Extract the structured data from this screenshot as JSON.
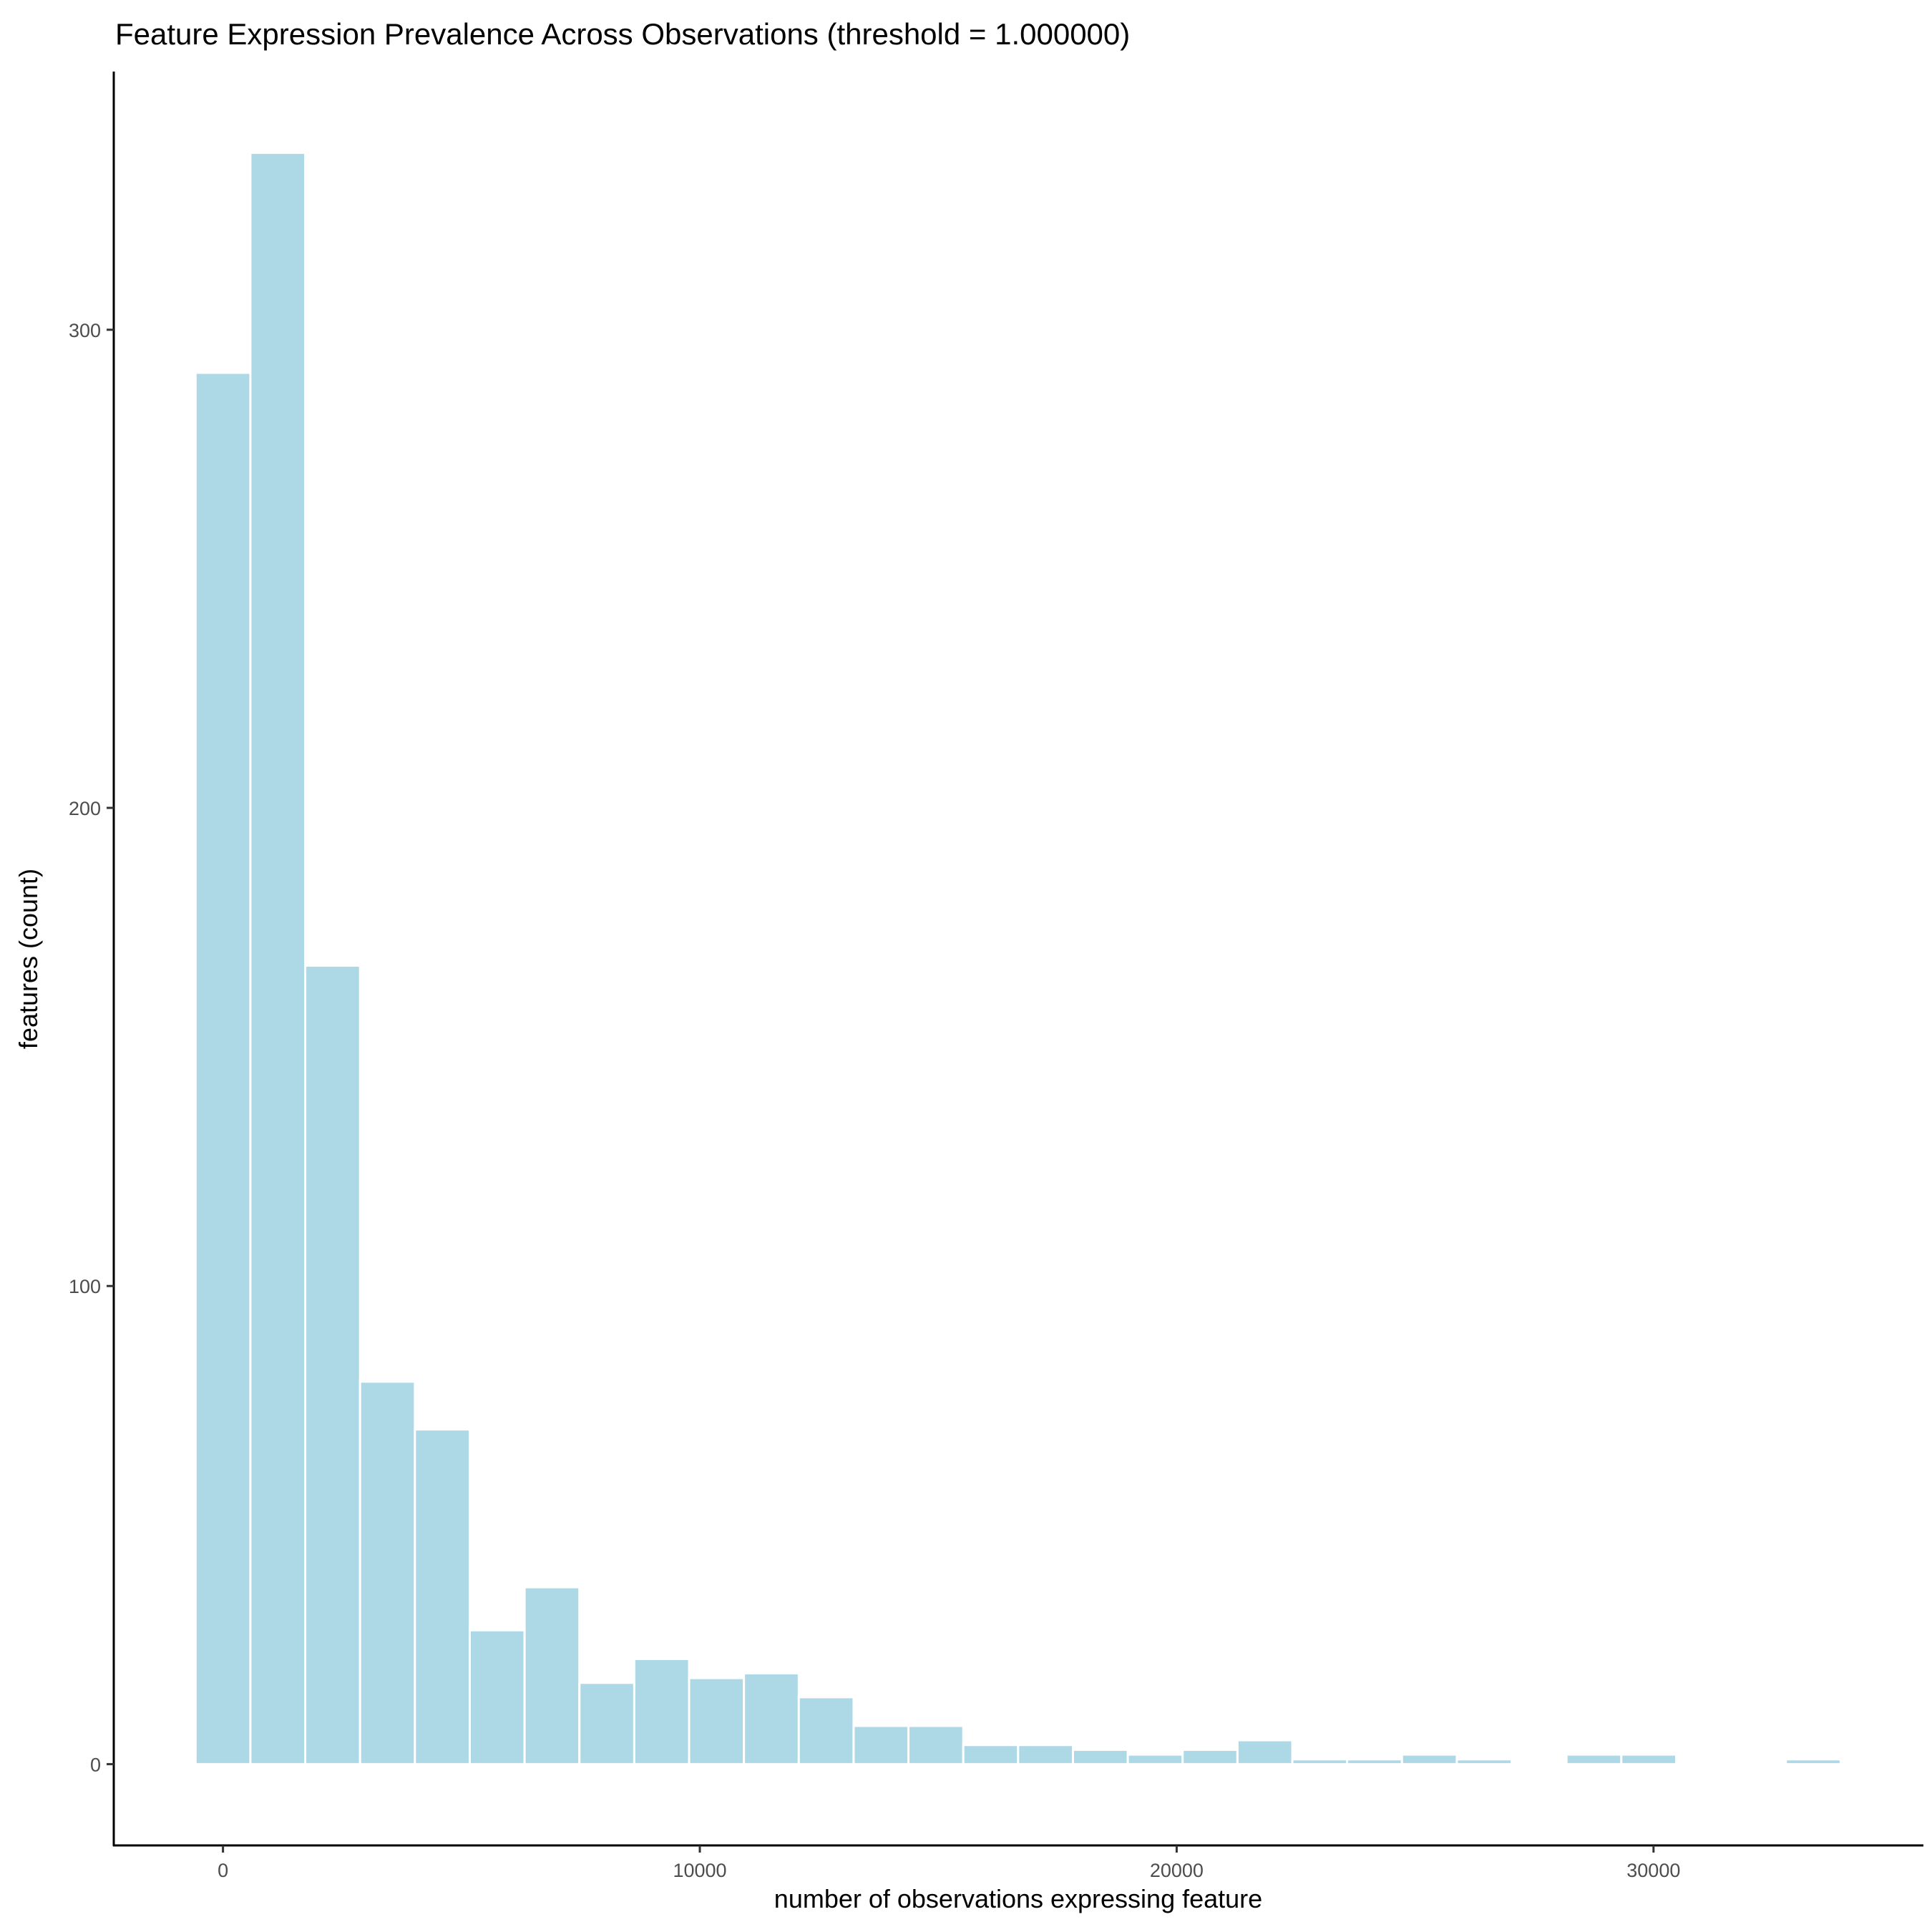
{
  "chart_data": {
    "type": "bar",
    "title": "Feature Expression Prevalence Across Observations (threshold = 1.000000)",
    "xlabel": "number of observations expressing feature",
    "ylabel": "features (count)",
    "bin_width": 1150,
    "bin_centers_start": 0,
    "values": [
      291,
      337,
      167,
      80,
      70,
      28,
      37,
      17,
      22,
      18,
      19,
      14,
      8,
      8,
      4,
      4,
      3,
      2,
      3,
      5,
      1,
      1,
      2,
      1,
      0,
      2,
      2,
      0,
      0,
      1
    ],
    "xlim": [
      -2290,
      35660
    ],
    "ylim": [
      -17,
      354
    ],
    "x_ticks": [
      0,
      10000,
      20000,
      30000
    ],
    "x_tick_labels": [
      "0",
      "10000",
      "20000",
      "30000"
    ],
    "y_ticks": [
      0,
      100,
      200,
      300
    ],
    "y_tick_labels": [
      "0",
      "100",
      "200",
      "300"
    ],
    "bar_color": "#add8e6",
    "bar_outline": "#ffffff",
    "grid": false,
    "legend": "none"
  }
}
